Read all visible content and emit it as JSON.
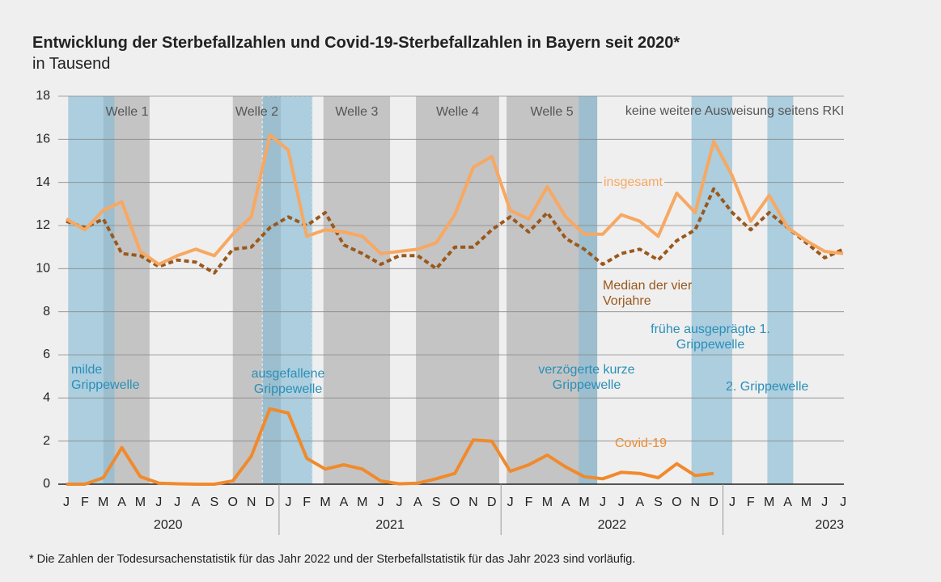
{
  "chart_data": {
    "type": "line",
    "title": "Entwicklung der Sterbefallzahlen und Covid-19-Sterbefallzahlen in Bayern seit 2020*",
    "subtitle": "in Tausend",
    "footnote": "* Die Zahlen der Todesursachenstatistik für das Jahr 2022 und der Sterbefallstatistik für das Jahr 2023 sind vorläufig.",
    "categories": [
      "J",
      "F",
      "M",
      "A",
      "M",
      "J",
      "J",
      "A",
      "S",
      "O",
      "N",
      "D",
      "J",
      "F",
      "M",
      "A",
      "M",
      "J",
      "J",
      "A",
      "S",
      "O",
      "N",
      "D",
      "J",
      "F",
      "M",
      "A",
      "M",
      "J",
      "J",
      "A",
      "S",
      "O",
      "N",
      "D",
      "J",
      "F",
      "M",
      "A",
      "M",
      "J",
      "J"
    ],
    "years": [
      "2020",
      "2021",
      "2022",
      "2023"
    ],
    "ylim": [
      0,
      18
    ],
    "yticks": [
      0,
      2,
      4,
      6,
      8,
      10,
      12,
      14,
      16,
      18
    ],
    "grid": true,
    "series": [
      {
        "name": "insgesamt",
        "color": "#f7a862",
        "dash": false,
        "values": [
          12.3,
          11.8,
          12.7,
          13.1,
          10.8,
          10.2,
          10.6,
          10.9,
          10.6,
          11.6,
          12.4,
          16.2,
          15.5,
          11.5,
          11.8,
          11.7,
          11.5,
          10.7,
          10.8,
          10.9,
          11.2,
          12.5,
          14.7,
          15.2,
          12.7,
          12.3,
          13.8,
          12.4,
          11.6,
          11.6,
          12.5,
          12.2,
          11.5,
          13.5,
          12.6,
          15.9,
          14.3,
          12.2,
          13.4,
          11.9,
          11.3,
          10.8,
          10.7
        ]
      },
      {
        "name": "Median der vier Vorjahre",
        "color": "#9a581c",
        "dash": true,
        "values": [
          12.2,
          11.9,
          12.3,
          10.7,
          10.6,
          10.1,
          10.4,
          10.3,
          9.8,
          10.9,
          11.0,
          11.9,
          12.4,
          12.0,
          12.6,
          11.1,
          10.7,
          10.2,
          10.6,
          10.6,
          10.0,
          11.0,
          11.0,
          11.8,
          12.4,
          11.7,
          12.6,
          11.4,
          10.9,
          10.2,
          10.7,
          10.9,
          10.4,
          11.3,
          11.8,
          13.7,
          12.6,
          11.8,
          12.6,
          11.9,
          11.2,
          10.5,
          10.9
        ]
      },
      {
        "name": "Covid-19",
        "color": "#f08a2c",
        "dash": false,
        "values": [
          0,
          0,
          0.3,
          1.7,
          0.35,
          0.05,
          0.02,
          0,
          0,
          0.15,
          1.3,
          3.5,
          3.3,
          1.2,
          0.7,
          0.9,
          0.7,
          0.15,
          0.02,
          0.05,
          0.25,
          0.5,
          2.05,
          2.0,
          0.6,
          0.9,
          1.35,
          0.8,
          0.35,
          0.25,
          0.55,
          0.5,
          0.3,
          0.95,
          0.4,
          0.5,
          null,
          null,
          null,
          null,
          null,
          null,
          null
        ]
      }
    ],
    "waves": [
      {
        "label": "Welle 1",
        "start": 2,
        "end": 4.5
      },
      {
        "label": "Welle 2",
        "start": 9,
        "end": 11.6
      },
      {
        "label": "Welle 3",
        "start": 13.9,
        "end": 17.5
      },
      {
        "label": "Welle 4",
        "start": 18.9,
        "end": 23.4
      },
      {
        "label": "Welle 5",
        "start": 23.8,
        "end": 28.7
      }
    ],
    "flu_waves": [
      {
        "label": "milde Grippewelle",
        "start": 0.1,
        "end": 2.6
      },
      {
        "label": "ausgefallene Grippewelle",
        "start": 10.6,
        "end": 13.3
      },
      {
        "label": "verzögerte kurze Grippewelle",
        "start": 27.7,
        "end": 28.7
      },
      {
        "label": "frühe ausgeprägte 1. Grippewelle",
        "start": 33.8,
        "end": 36
      },
      {
        "label": "2. Grippewelle",
        "start": 37.9,
        "end": 39.3
      }
    ],
    "annotations": [
      "keine weitere Ausweisung seitens RKI"
    ]
  }
}
